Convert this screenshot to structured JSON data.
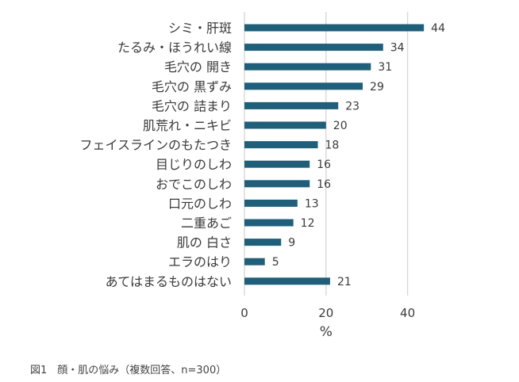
{
  "chart_data": {
    "type": "bar",
    "orientation": "horizontal",
    "categories": [
      "シミ・肝斑",
      "たるみ・ほうれい線",
      "毛穴の 開き",
      "毛穴の 黒ずみ",
      "毛穴の 詰まり",
      "肌荒れ・ニキビ",
      "フェイスラインのもたつき",
      "目じりのしわ",
      "おでこのしわ",
      "口元のしわ",
      "二重あご",
      "肌の 白さ",
      "エラのはり",
      "あてはまるものはない"
    ],
    "values": [
      44,
      34,
      31,
      29,
      23,
      20,
      18,
      16,
      16,
      13,
      12,
      9,
      5,
      21
    ],
    "xlim": [
      0,
      50
    ],
    "xticks": [
      0,
      20,
      40
    ],
    "xlabel": "%",
    "ylabel": "",
    "title": "",
    "grid": "vertical",
    "bar_color": "#1f5f7a",
    "grid_color": "#d9d9d9"
  },
  "caption": "図1　顔・肌の悩み（複数回答、n=300）"
}
